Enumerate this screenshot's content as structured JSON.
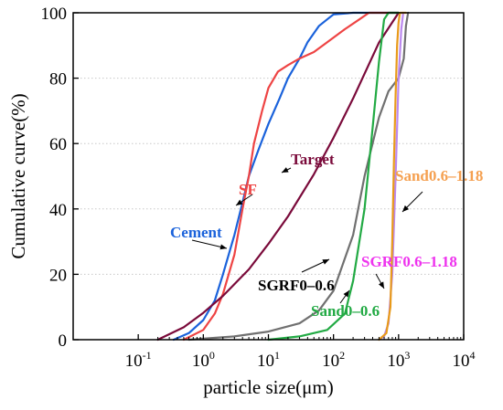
{
  "chart_data": {
    "type": "line",
    "xlabel": "particle size(μm)",
    "ylabel": "Cumulative curve(%)",
    "x_scale": "log",
    "xlim": [
      0.01,
      10000
    ],
    "ylim": [
      0,
      100
    ],
    "x_ticks": [
      {
        "value": 0.1,
        "base": "10",
        "exp": "-1"
      },
      {
        "value": 1,
        "base": "10",
        "exp": "0"
      },
      {
        "value": 10,
        "base": "10",
        "exp": "1"
      },
      {
        "value": 100,
        "base": "10",
        "exp": "2"
      },
      {
        "value": 1000,
        "base": "10",
        "exp": "3"
      },
      {
        "value": 10000,
        "base": "10",
        "exp": "4"
      }
    ],
    "y_ticks": [
      "0",
      "20",
      "40",
      "60",
      "80",
      "100"
    ],
    "grid": "horizontal dotted",
    "series": [
      {
        "name": "Cement",
        "color": "#1a62db",
        "points": [
          [
            0.35,
            0
          ],
          [
            0.6,
            2
          ],
          [
            1,
            6
          ],
          [
            1.5,
            12
          ],
          [
            2,
            20
          ],
          [
            3,
            32
          ],
          [
            4,
            42
          ],
          [
            5,
            50
          ],
          [
            7,
            58
          ],
          [
            10,
            66
          ],
          [
            15,
            74
          ],
          [
            20,
            80
          ],
          [
            30,
            86
          ],
          [
            40,
            91
          ],
          [
            60,
            96
          ],
          [
            80,
            98
          ],
          [
            100,
            99.5
          ],
          [
            200,
            100
          ],
          [
            1000,
            100
          ]
        ]
      },
      {
        "name": "SF",
        "color": "#ee4444",
        "points": [
          [
            0.5,
            0
          ],
          [
            1,
            3
          ],
          [
            1.5,
            8
          ],
          [
            2,
            14
          ],
          [
            3,
            26
          ],
          [
            4,
            40
          ],
          [
            5,
            50
          ],
          [
            6,
            60
          ],
          [
            8,
            70
          ],
          [
            10,
            77
          ],
          [
            14,
            82
          ],
          [
            20,
            84
          ],
          [
            30,
            86
          ],
          [
            50,
            88
          ],
          [
            80,
            91
          ],
          [
            150,
            95
          ],
          [
            250,
            98
          ],
          [
            350,
            100
          ],
          [
            1000,
            100
          ]
        ]
      },
      {
        "name": "Target",
        "color": "#7a0a3a",
        "points": [
          [
            0.2,
            0
          ],
          [
            0.5,
            3.8
          ],
          [
            1,
            8.2
          ],
          [
            2,
            13.4
          ],
          [
            5,
            21.5
          ],
          [
            10,
            29.3
          ],
          [
            20,
            37.7
          ],
          [
            50,
            50.6
          ],
          [
            100,
            61.8
          ],
          [
            200,
            73.8
          ],
          [
            500,
            90.9
          ],
          [
            1000,
            100
          ]
        ]
      },
      {
        "name": "SGRF0–0.6",
        "color": "#707070",
        "points": [
          [
            0.6,
            0
          ],
          [
            1,
            0.3
          ],
          [
            3,
            1
          ],
          [
            10,
            2.5
          ],
          [
            30,
            5
          ],
          [
            60,
            9
          ],
          [
            100,
            15
          ],
          [
            200,
            32
          ],
          [
            300,
            50
          ],
          [
            500,
            68
          ],
          [
            700,
            76
          ],
          [
            1000,
            80
          ],
          [
            1200,
            86
          ],
          [
            1300,
            96
          ],
          [
            1400,
            100
          ]
        ]
      },
      {
        "name": "Sand0–0.6",
        "color": "#22aa44",
        "points": [
          [
            10,
            0
          ],
          [
            30,
            1
          ],
          [
            80,
            3
          ],
          [
            150,
            8
          ],
          [
            200,
            18
          ],
          [
            300,
            40
          ],
          [
            400,
            65
          ],
          [
            500,
            85
          ],
          [
            600,
            98
          ],
          [
            700,
            100
          ],
          [
            1000,
            100
          ]
        ]
      },
      {
        "name": "SGRF0.6–1.18",
        "color": "#bb88ee",
        "points": [
          [
            500,
            0
          ],
          [
            600,
            1
          ],
          [
            700,
            5
          ],
          [
            800,
            20
          ],
          [
            900,
            50
          ],
          [
            1000,
            80
          ],
          [
            1100,
            95
          ],
          [
            1180,
            100
          ]
        ]
      },
      {
        "name": "Sand0.6–1.18",
        "color": "#e89a1a",
        "points": [
          [
            500,
            0
          ],
          [
            650,
            2
          ],
          [
            750,
            10
          ],
          [
            800,
            30
          ],
          [
            850,
            55
          ],
          [
            900,
            75
          ],
          [
            950,
            90
          ],
          [
            1000,
            97
          ],
          [
            1050,
            100
          ],
          [
            1300,
            100
          ]
        ]
      }
    ],
    "labels": [
      {
        "text": "Cement",
        "color": "#1a62db",
        "series": 0
      },
      {
        "text": "SF",
        "color": "#ee4444",
        "series": 1
      },
      {
        "text": "Target",
        "color": "#7a0a3a",
        "series": 2
      },
      {
        "text": "SGRF0–0.6",
        "color": "#000000",
        "series": 3
      },
      {
        "text": "Sand0–0.6",
        "color": "#22aa44",
        "series": 4
      },
      {
        "text": "SGRF0.6–1.18",
        "color": "#ee33ee",
        "series": 5
      },
      {
        "text": "Sand0.6–1.18",
        "color": "#f5a050",
        "series": 6
      }
    ]
  }
}
